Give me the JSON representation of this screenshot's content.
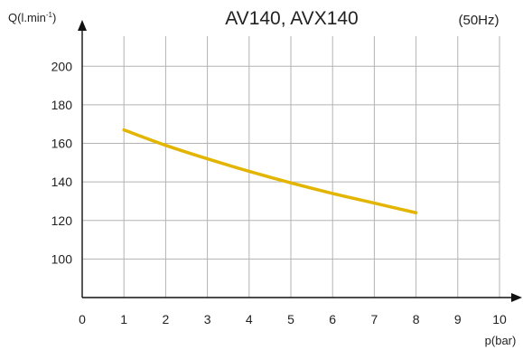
{
  "chart_data": {
    "type": "line",
    "title": "AV140, AVX140",
    "annotation": "(50Hz)",
    "ylabel": "Q(l.min",
    "ylabel_sup": "-1",
    "ylabel_close": ")",
    "xlabel": "p(bar)",
    "xlim": [
      0,
      10
    ],
    "ylim": [
      80,
      210
    ],
    "xticks": [
      0,
      1,
      2,
      3,
      4,
      5,
      6,
      7,
      8,
      9,
      10
    ],
    "yticks": [
      100,
      120,
      140,
      160,
      180,
      200
    ],
    "grid": true,
    "series": [
      {
        "color": "#e3b400",
        "x": [
          1,
          2,
          3,
          4,
          5,
          6,
          7,
          8
        ],
        "y": [
          167,
          159,
          152,
          145.5,
          139.5,
          134,
          129,
          124
        ]
      }
    ]
  }
}
